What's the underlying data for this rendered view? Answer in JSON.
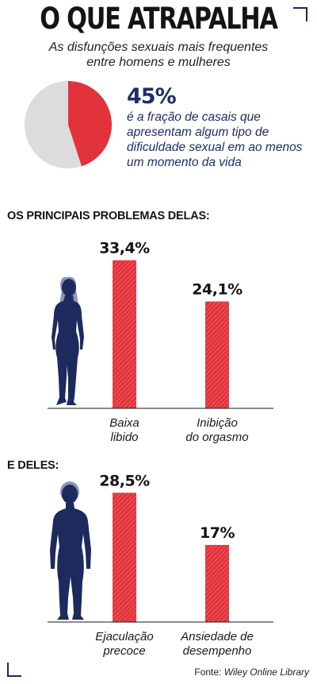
{
  "title": "O QUE ATRAPALHA",
  "subtitle_line1": "As disfunções sexuais mais frequentes",
  "subtitle_line2": "entre homens e mulheres",
  "pie": {
    "percent_label": "45%",
    "value": 45,
    "description": "é a fração de casais que apresentam algum tipo de dificuldade sexual em ao menos um momento da vida"
  },
  "colors": {
    "accent_red": "#e2323b",
    "pie_rest": "#dcdcdc",
    "navy": "#1f2d66",
    "figure": "#1c2a5e"
  },
  "section_women": "OS PRINCIPAIS PROBLEMAS DELAS:",
  "section_men": "E DELES:",
  "source_prefix": "Fonte:",
  "source_name": "Wiley Online Library",
  "chart_data": [
    {
      "type": "bar",
      "categories": [
        [
          "Baixa",
          "libido"
        ],
        [
          "Inibição",
          "do orgasmo"
        ]
      ],
      "values": [
        33.4,
        24.1
      ],
      "value_labels": [
        "33,4%",
        "24,1%"
      ],
      "title": "OS PRINCIPAIS PROBLEMAS DELAS:",
      "ylim": [
        0,
        36
      ],
      "figure_icon": "woman-silhouette-icon"
    },
    {
      "type": "bar",
      "categories": [
        [
          "Ejaculação",
          "precoce"
        ],
        [
          "Ansiedade de",
          "desempenho"
        ]
      ],
      "values": [
        28.5,
        17
      ],
      "value_labels": [
        "28,5%",
        "17%"
      ],
      "title": "E DELES:",
      "ylim": [
        0,
        31
      ],
      "figure_icon": "man-silhouette-icon"
    }
  ]
}
